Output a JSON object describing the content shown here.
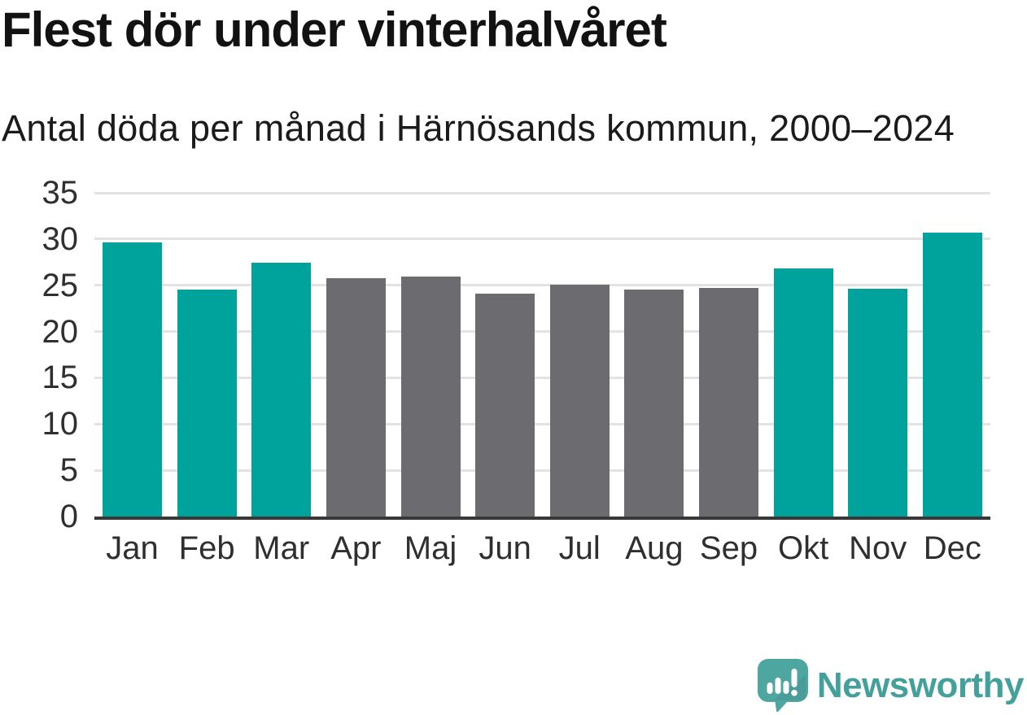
{
  "title": "Flest dör under vinterhalvåret",
  "subtitle": "Antal döda per månad i Härnösands kommun, 2000–2024",
  "branding": {
    "name": "Newsworthy",
    "logo_icon": "newsworthy-speech-bubble-bar-chart-icon"
  },
  "colors": {
    "winter_bar": "#00a39b",
    "summer_bar": "#6b6b70",
    "gridline": "#e3e3e3",
    "axis_line": "#383838",
    "axis_label": "#2f2f2f",
    "title_text": "#121212",
    "subtitle_text": "#1b1b1b",
    "brand_text": "#44a09a",
    "brand_bubble": "#4ea6a1"
  },
  "chart_data": {
    "type": "bar",
    "title": "Flest dör under vinterhalvåret",
    "subtitle": "Antal döda per månad i Härnösands kommun, 2000–2024",
    "categories": [
      "Jan",
      "Feb",
      "Mar",
      "Apr",
      "Maj",
      "Jun",
      "Jul",
      "Aug",
      "Sep",
      "Okt",
      "Nov",
      "Dec"
    ],
    "values": [
      29.6,
      24.5,
      27.4,
      25.8,
      25.9,
      24.1,
      25.1,
      24.5,
      24.7,
      26.8,
      24.6,
      30.7
    ],
    "bar_colors": [
      "#00a39b",
      "#00a39b",
      "#00a39b",
      "#6b6b70",
      "#6b6b70",
      "#6b6b70",
      "#6b6b70",
      "#6b6b70",
      "#6b6b70",
      "#00a39b",
      "#00a39b",
      "#00a39b"
    ],
    "highlight_note": "Winter-half months (Okt–Mar) in teal, summer-half months (Apr–Sep) in gray",
    "xlabel": "",
    "ylabel": "",
    "ylim": [
      0,
      35
    ],
    "yticks": [
      0,
      5,
      10,
      15,
      20,
      25,
      30,
      35
    ],
    "grid": "horizontal gridlines on",
    "legend": "none"
  }
}
